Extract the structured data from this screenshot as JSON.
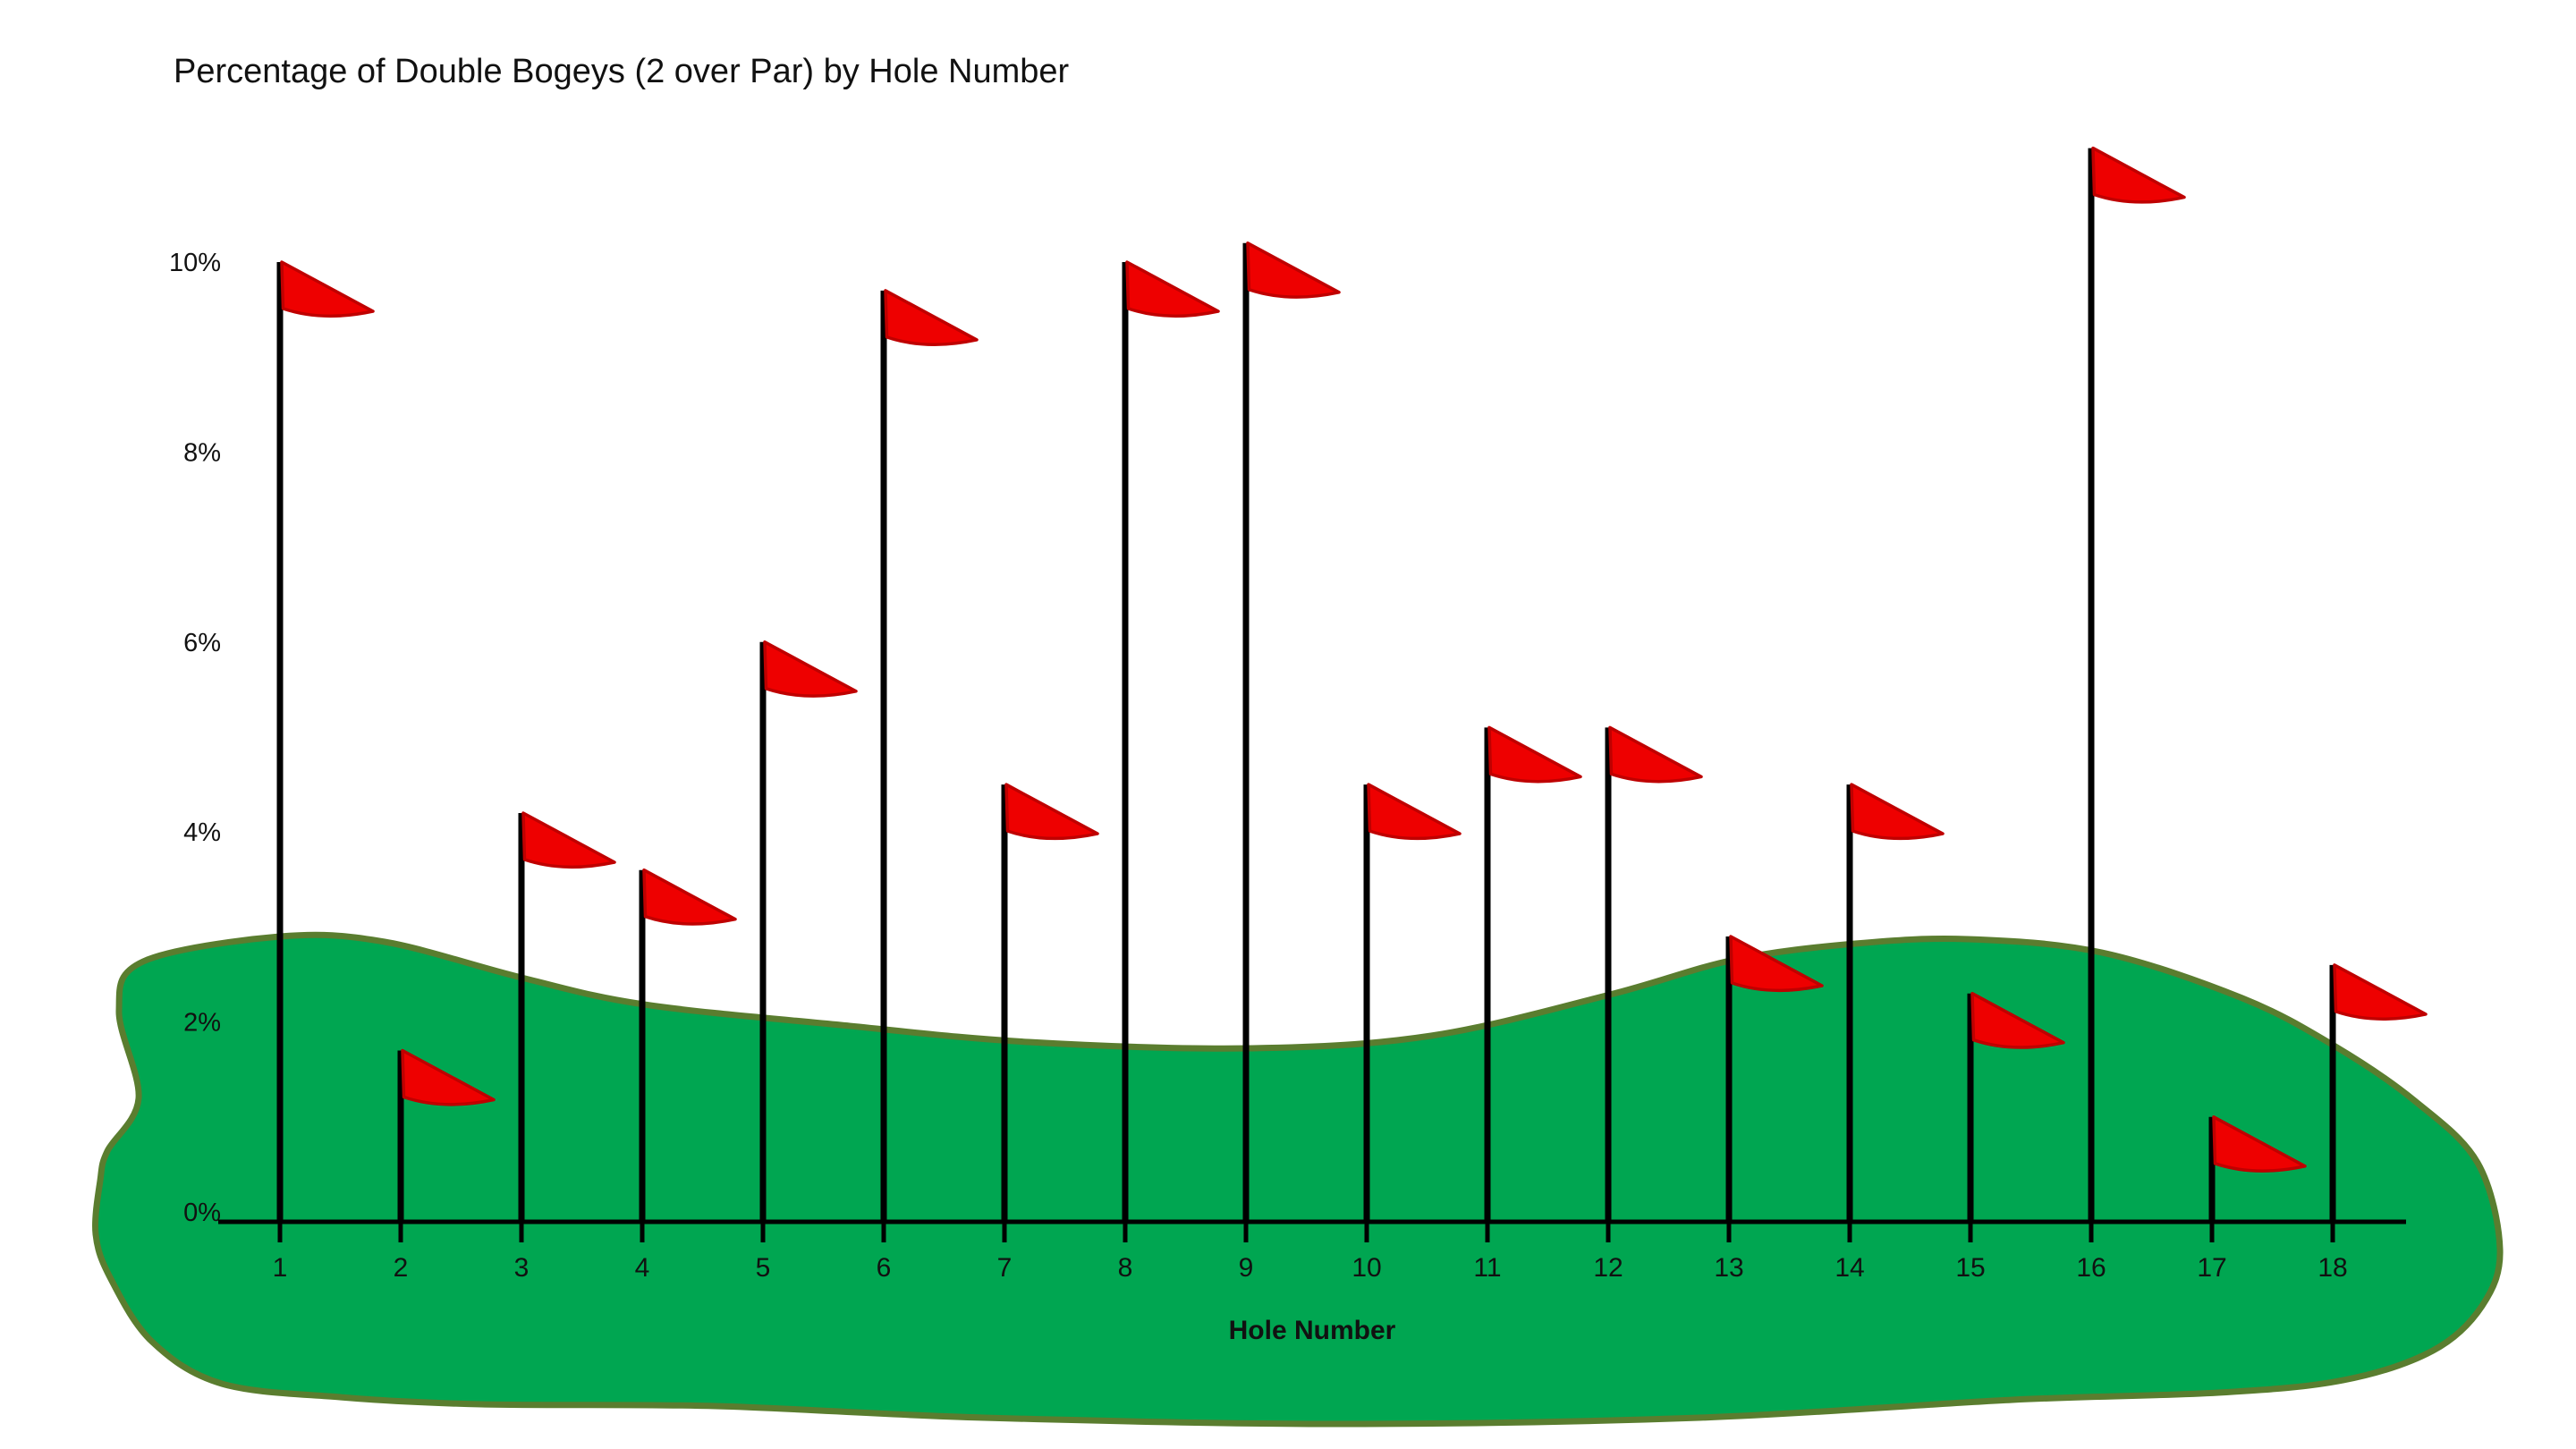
{
  "title": "Percentage of Double Bogeys (2 over Par) by Hole Number",
  "chart_data": {
    "type": "bar",
    "variant": "golf-flag-pictograph",
    "title": "Percentage of Double Bogeys (2 over Par) by Hole Number",
    "categories": [
      "1",
      "2",
      "3",
      "4",
      "5",
      "6",
      "7",
      "8",
      "9",
      "10",
      "11",
      "12",
      "13",
      "14",
      "15",
      "16",
      "17",
      "18"
    ],
    "values": [
      10,
      1.7,
      4.2,
      3.6,
      6,
      9.7,
      4.5,
      10,
      10.2,
      4.5,
      5.1,
      5.1,
      2.9,
      4.5,
      2.3,
      11.2,
      1,
      2.6
    ],
    "unit": "%",
    "xlabel": "Hole Number",
    "ylabel": "",
    "y_ticks": [
      "0%",
      "2%",
      "4%",
      "6%",
      "8%",
      "10%"
    ],
    "y_tick_values": [
      0,
      2,
      4,
      6,
      8,
      10
    ],
    "ylim": [
      0,
      11.5
    ],
    "grid": false,
    "legend": null,
    "marker": "red-golf-flag-on-pole",
    "background_shape": "green-golf-course-blob"
  },
  "colors": {
    "background": "#FFFFFF",
    "course_green": "#00A651",
    "course_outline": "#5A7D2F",
    "flag_red": "#EE0000",
    "flag_red_dark": "#BF0000",
    "pole": "#000000",
    "axis": "#000000",
    "text": "#111111"
  }
}
